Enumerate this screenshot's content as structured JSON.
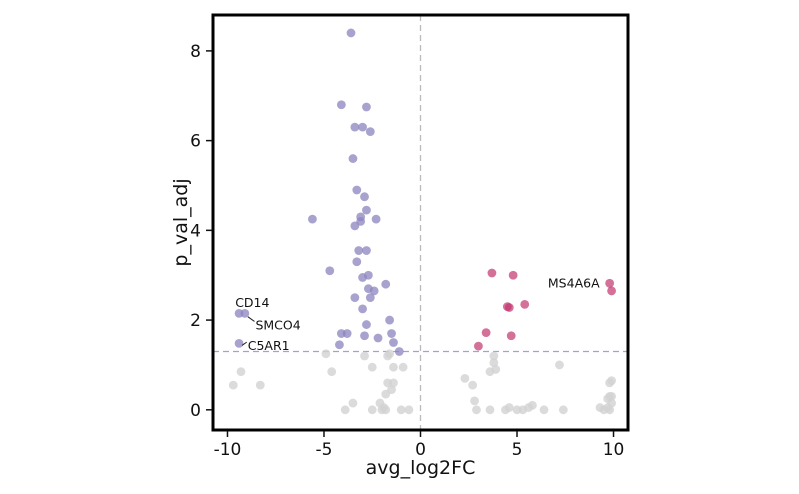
{
  "colors": {
    "down": "#8b84bd",
    "up": "#c2346e",
    "ns": "#d2d2d2",
    "threshold_line": "#9f9fe6",
    "zero_line": "#bbbbbb",
    "frame": "#000000"
  },
  "chart_data": {
    "type": "scatter",
    "title": "",
    "xlabel": "avg_log2FC",
    "ylabel": "p_val_adj",
    "xlim": [
      -10.75,
      10.75
    ],
    "ylim": [
      -0.45,
      8.8
    ],
    "xticks": [
      -10,
      -5,
      0,
      5,
      10
    ],
    "xtick_labels": [
      "-10",
      "-5",
      "0",
      "5",
      "10"
    ],
    "yticks": [
      0,
      2,
      4,
      6,
      8
    ],
    "ytick_labels": [
      "0",
      "2",
      "4",
      "6",
      "8"
    ],
    "grid": false,
    "legend": "none",
    "threshold_y": 1.3,
    "threshold_x": 0,
    "down_points": [
      [
        -3.6,
        8.4
      ],
      [
        -4.1,
        6.8
      ],
      [
        -2.8,
        6.75
      ],
      [
        -3.4,
        6.3
      ],
      [
        -3.0,
        6.3
      ],
      [
        -2.6,
        6.2
      ],
      [
        -3.5,
        5.6
      ],
      [
        -3.3,
        4.9
      ],
      [
        -2.9,
        4.75
      ],
      [
        -2.8,
        4.45
      ],
      [
        -5.6,
        4.25
      ],
      [
        -3.1,
        4.3
      ],
      [
        -2.3,
        4.25
      ],
      [
        -3.1,
        4.2
      ],
      [
        -3.4,
        4.1
      ],
      [
        -3.2,
        3.55
      ],
      [
        -2.8,
        3.55
      ],
      [
        -3.3,
        3.3
      ],
      [
        -4.7,
        3.1
      ],
      [
        -3.0,
        2.95
      ],
      [
        -2.7,
        3.0
      ],
      [
        -1.8,
        2.8
      ],
      [
        -2.7,
        2.7
      ],
      [
        -2.4,
        2.65
      ],
      [
        -3.4,
        2.5
      ],
      [
        -2.6,
        2.5
      ],
      [
        -9.4,
        2.15
      ],
      [
        -9.1,
        2.15
      ],
      [
        -3.0,
        2.25
      ],
      [
        -1.6,
        2.0
      ],
      [
        -2.8,
        1.9
      ],
      [
        -4.1,
        1.7
      ],
      [
        -3.8,
        1.7
      ],
      [
        -2.9,
        1.65
      ],
      [
        -1.5,
        1.7
      ],
      [
        -2.2,
        1.6
      ],
      [
        -9.4,
        1.48
      ],
      [
        -4.2,
        1.45
      ],
      [
        -1.4,
        1.5
      ],
      [
        -1.1,
        1.3
      ]
    ],
    "up_points": [
      [
        3.7,
        3.05
      ],
      [
        4.8,
        3.0
      ],
      [
        9.8,
        2.82
      ],
      [
        9.9,
        2.65
      ],
      [
        5.4,
        2.35
      ],
      [
        4.5,
        2.3
      ],
      [
        4.6,
        2.28
      ],
      [
        3.4,
        1.72
      ],
      [
        4.7,
        1.65
      ],
      [
        3.0,
        1.42
      ]
    ],
    "ns_points": [
      [
        -9.7,
        0.55
      ],
      [
        -9.3,
        0.85
      ],
      [
        -8.3,
        0.55
      ],
      [
        -4.6,
        0.85
      ],
      [
        -4.9,
        1.25
      ],
      [
        -2.9,
        1.2
      ],
      [
        -1.7,
        1.2
      ],
      [
        -1.6,
        1.25
      ],
      [
        -3.9,
        0.0
      ],
      [
        -3.5,
        0.15
      ],
      [
        -2.5,
        0.0
      ],
      [
        -2.0,
        0.0
      ],
      [
        -1.9,
        0.05
      ],
      [
        -1.7,
        0.6
      ],
      [
        -1.5,
        0.45
      ],
      [
        -1.4,
        0.6
      ],
      [
        -1.8,
        0.35
      ],
      [
        -2.1,
        0.15
      ],
      [
        -1.0,
        0.0
      ],
      [
        -0.6,
        0.0
      ],
      [
        -1.4,
        0.95
      ],
      [
        -0.9,
        0.95
      ],
      [
        -2.5,
        0.95
      ],
      [
        -1.8,
        0.0
      ],
      [
        2.3,
        0.7
      ],
      [
        2.7,
        0.55
      ],
      [
        2.8,
        0.2
      ],
      [
        2.9,
        0.0
      ],
      [
        3.6,
        0.0
      ],
      [
        3.6,
        0.85
      ],
      [
        3.8,
        1.05
      ],
      [
        3.8,
        1.2
      ],
      [
        3.9,
        0.9
      ],
      [
        4.4,
        0.0
      ],
      [
        4.6,
        0.05
      ],
      [
        5.0,
        0.0
      ],
      [
        5.3,
        0.0
      ],
      [
        5.6,
        0.05
      ],
      [
        5.8,
        0.1
      ],
      [
        6.4,
        0.0
      ],
      [
        7.4,
        0.0
      ],
      [
        7.2,
        1.0
      ],
      [
        9.3,
        0.05
      ],
      [
        9.5,
        0.0
      ],
      [
        9.7,
        0.05
      ],
      [
        9.8,
        0.3
      ],
      [
        9.8,
        0.6
      ],
      [
        9.9,
        0.65
      ],
      [
        9.9,
        0.15
      ],
      [
        9.9,
        0.3
      ],
      [
        9.8,
        0.0
      ],
      [
        9.7,
        0.25
      ]
    ],
    "annotations": [
      {
        "label": "CD14",
        "x": -9.2,
        "y": 2.15,
        "label_x": -9.6,
        "label_y": 2.38,
        "leader": false
      },
      {
        "label": "SMCO4",
        "x": -9.05,
        "y": 2.12,
        "label_x": -8.55,
        "label_y": 1.88,
        "leader": true
      },
      {
        "label": "C5AR1",
        "x": -9.35,
        "y": 1.48,
        "label_x": -8.95,
        "label_y": 1.42,
        "leader": true
      },
      {
        "label": "MS4A6A",
        "x": 9.75,
        "y": 2.82,
        "label_x": 6.6,
        "label_y": 2.82,
        "leader": false
      }
    ]
  }
}
